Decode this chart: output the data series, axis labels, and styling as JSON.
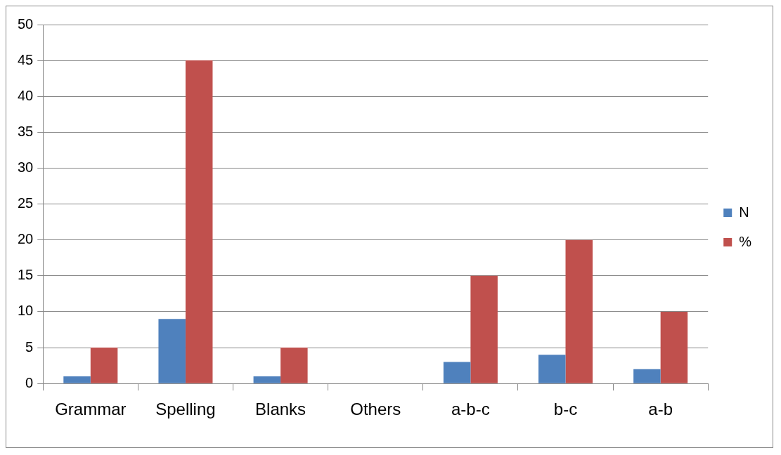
{
  "chart_data": {
    "type": "bar",
    "categories": [
      "Grammar",
      "Spelling",
      "Blanks",
      "Others",
      "a-b-c",
      "b-c",
      "a-b"
    ],
    "series": [
      {
        "name": "N",
        "color": "#4f81bd",
        "values": [
          1,
          9,
          1,
          0,
          3,
          4,
          2
        ]
      },
      {
        "name": "%",
        "color": "#c0504d",
        "values": [
          5,
          45,
          5,
          0,
          15,
          20,
          10
        ]
      }
    ],
    "ylim": [
      0,
      50
    ],
    "yticks": [
      0,
      5,
      10,
      15,
      20,
      25,
      30,
      35,
      40,
      45,
      50
    ],
    "grid": "y",
    "legend": "right"
  }
}
